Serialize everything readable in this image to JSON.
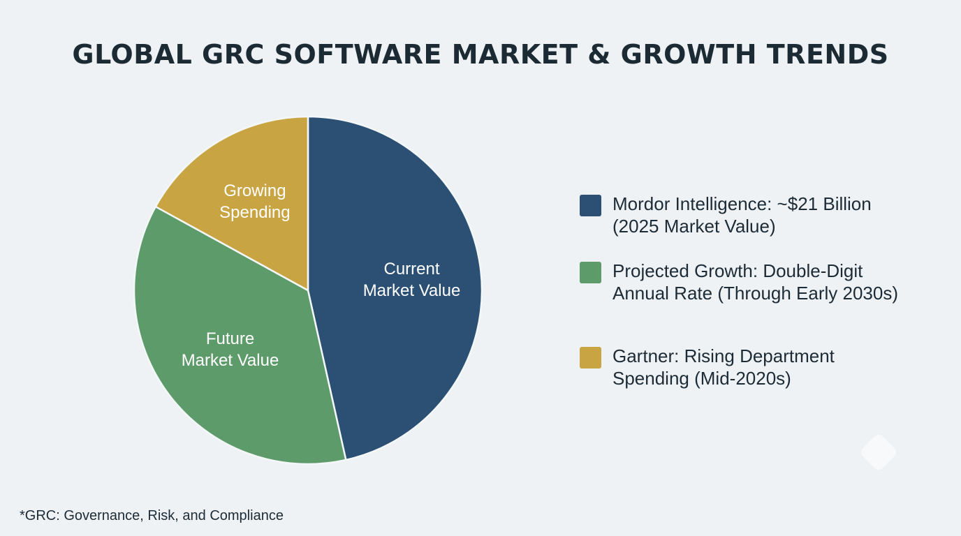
{
  "title": "GLOBAL GRC SOFTWARE MARKET & GROWTH TRENDS",
  "chart_data": {
    "type": "pie",
    "title": "GLOBAL GRC SOFTWARE MARKET & GROWTH TRENDS",
    "start_angle_deg": 0,
    "direction": "clockwise",
    "slices": [
      {
        "label_lines": [
          "Current",
          "Market Value"
        ],
        "value": 46.5,
        "color": "#2b5074"
      },
      {
        "label_lines": [
          "Future",
          "Market Value"
        ],
        "value": 36.5,
        "color": "#5d9b6a"
      },
      {
        "label_lines": [
          "Growing",
          "Spending"
        ],
        "value": 17.0,
        "color": "#c9a442"
      }
    ],
    "legend_position": "right"
  },
  "legend": [
    {
      "color": "#2b5074",
      "lines": [
        "Mordor Intelligence: ~$21 Billion",
        "(2025 Market Value)"
      ]
    },
    {
      "color": "#5d9b6a",
      "lines": [
        "Projected Growth: Double-Digit",
        "Annual Rate (Through Early 2030s)"
      ]
    },
    {
      "color": "#c9a442",
      "lines": [
        "Gartner: Rising Department",
        "Spending (Mid-2020s)"
      ]
    }
  ],
  "footnote": "*GRC: Governance, Risk, and Compliance"
}
